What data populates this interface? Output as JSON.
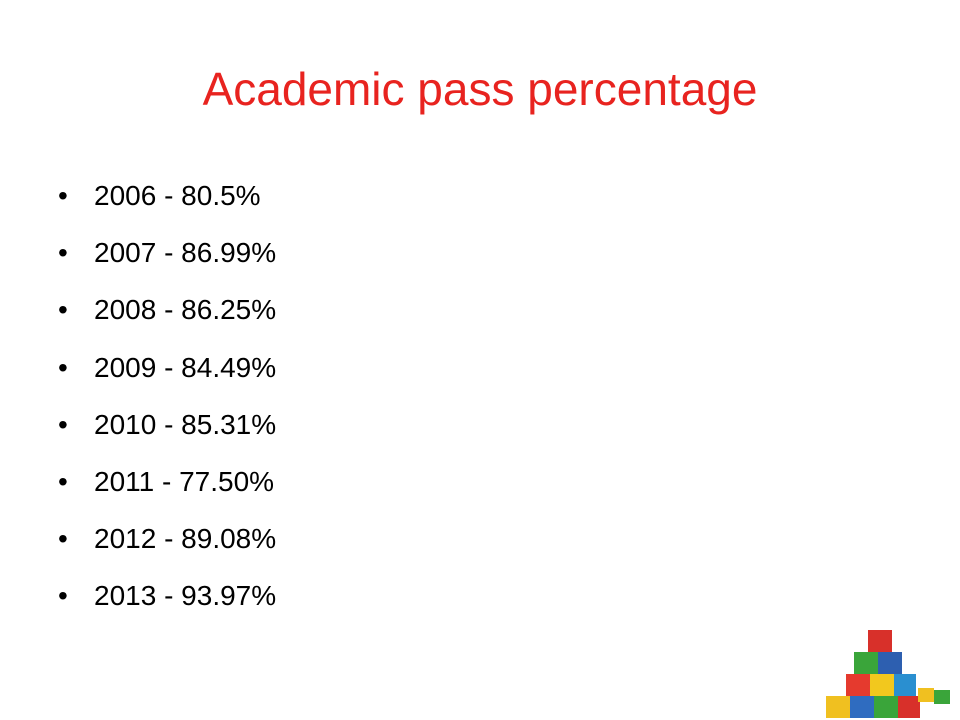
{
  "title": "Academic pass percentage",
  "items": [
    "2006 - 80.5%",
    "2007 - 86.99%",
    "2008 - 86.25%",
    "2009 - 84.49%",
    "2010 - 85.31%",
    "2011 - 77.50%",
    "2012 - 89.08%",
    "2013 - 93.97%"
  ]
}
